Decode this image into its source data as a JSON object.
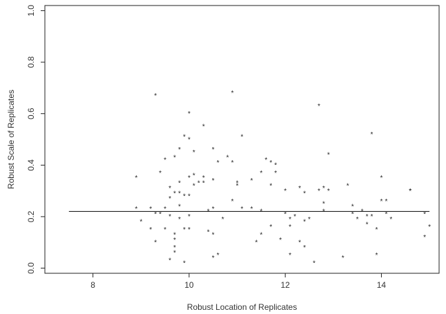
{
  "chart_data": {
    "type": "scatter",
    "xlabel": "Robust Location of Replicates",
    "ylabel": "Robust Scale of Replicates",
    "xlim": [
      7.0,
      15.2
    ],
    "ylim": [
      -0.02,
      1.02
    ],
    "x_ticks": [
      8,
      10,
      12,
      14
    ],
    "y_ticks": [
      0.0,
      0.2,
      0.4,
      0.6,
      0.8,
      1.0
    ],
    "x_tick_labels": [
      "8",
      "10",
      "12",
      "14"
    ],
    "y_tick_labels": [
      "0.0",
      "0.2",
      "0.4",
      "0.6",
      "0.8",
      "1.0"
    ],
    "marker": "*",
    "grid": false,
    "reference_line": {
      "y": 0.22,
      "x_start": 7.5,
      "x_end": 15.0
    },
    "points": [
      {
        "x": 8.9,
        "y": 0.36
      },
      {
        "x": 8.9,
        "y": 0.24
      },
      {
        "x": 9.0,
        "y": 0.19
      },
      {
        "x": 9.2,
        "y": 0.16
      },
      {
        "x": 9.2,
        "y": 0.24
      },
      {
        "x": 9.3,
        "y": 0.68
      },
      {
        "x": 9.3,
        "y": 0.22
      },
      {
        "x": 9.3,
        "y": 0.11
      },
      {
        "x": 9.4,
        "y": 0.38
      },
      {
        "x": 9.4,
        "y": 0.22
      },
      {
        "x": 9.5,
        "y": 0.43
      },
      {
        "x": 9.5,
        "y": 0.16
      },
      {
        "x": 9.5,
        "y": 0.24
      },
      {
        "x": 9.6,
        "y": 0.28
      },
      {
        "x": 9.6,
        "y": 0.21
      },
      {
        "x": 9.6,
        "y": 0.04
      },
      {
        "x": 9.6,
        "y": 0.32
      },
      {
        "x": 9.7,
        "y": 0.44
      },
      {
        "x": 9.7,
        "y": 0.3
      },
      {
        "x": 9.7,
        "y": 0.14
      },
      {
        "x": 9.7,
        "y": 0.09
      },
      {
        "x": 9.7,
        "y": 0.12
      },
      {
        "x": 9.7,
        "y": 0.07
      },
      {
        "x": 9.8,
        "y": 0.47
      },
      {
        "x": 9.8,
        "y": 0.34
      },
      {
        "x": 9.8,
        "y": 0.25
      },
      {
        "x": 9.8,
        "y": 0.2
      },
      {
        "x": 9.8,
        "y": 0.3
      },
      {
        "x": 9.9,
        "y": 0.52
      },
      {
        "x": 9.9,
        "y": 0.16
      },
      {
        "x": 9.9,
        "y": 0.03
      },
      {
        "x": 9.9,
        "y": 0.29
      },
      {
        "x": 10.0,
        "y": 0.61
      },
      {
        "x": 10.0,
        "y": 0.51
      },
      {
        "x": 10.0,
        "y": 0.36
      },
      {
        "x": 10.0,
        "y": 0.29
      },
      {
        "x": 10.0,
        "y": 0.16
      },
      {
        "x": 10.0,
        "y": 0.21
      },
      {
        "x": 10.1,
        "y": 0.46
      },
      {
        "x": 10.1,
        "y": 0.37
      },
      {
        "x": 10.1,
        "y": 0.33
      },
      {
        "x": 10.2,
        "y": 0.34
      },
      {
        "x": 10.3,
        "y": 0.56
      },
      {
        "x": 10.3,
        "y": 0.36
      },
      {
        "x": 10.3,
        "y": 0.34
      },
      {
        "x": 10.4,
        "y": 0.23
      },
      {
        "x": 10.4,
        "y": 0.15
      },
      {
        "x": 10.5,
        "y": 0.47
      },
      {
        "x": 10.5,
        "y": 0.35
      },
      {
        "x": 10.5,
        "y": 0.24
      },
      {
        "x": 10.5,
        "y": 0.14
      },
      {
        "x": 10.5,
        "y": 0.05
      },
      {
        "x": 10.6,
        "y": 0.42
      },
      {
        "x": 10.6,
        "y": 0.06
      },
      {
        "x": 10.7,
        "y": 0.2
      },
      {
        "x": 10.8,
        "y": 0.44
      },
      {
        "x": 10.9,
        "y": 0.69
      },
      {
        "x": 10.9,
        "y": 0.42
      },
      {
        "x": 10.9,
        "y": 0.27
      },
      {
        "x": 11.0,
        "y": 0.34
      },
      {
        "x": 11.0,
        "y": 0.33
      },
      {
        "x": 11.1,
        "y": 0.52
      },
      {
        "x": 11.1,
        "y": 0.24
      },
      {
        "x": 11.3,
        "y": 0.35
      },
      {
        "x": 11.3,
        "y": 0.24
      },
      {
        "x": 11.4,
        "y": 0.11
      },
      {
        "x": 11.5,
        "y": 0.38
      },
      {
        "x": 11.5,
        "y": 0.23
      },
      {
        "x": 11.5,
        "y": 0.14
      },
      {
        "x": 11.6,
        "y": 0.43
      },
      {
        "x": 11.7,
        "y": 0.42
      },
      {
        "x": 11.7,
        "y": 0.33
      },
      {
        "x": 11.7,
        "y": 0.17
      },
      {
        "x": 11.8,
        "y": 0.38
      },
      {
        "x": 11.8,
        "y": 0.41
      },
      {
        "x": 11.9,
        "y": 0.12
      },
      {
        "x": 12.0,
        "y": 0.22
      },
      {
        "x": 12.0,
        "y": 0.31
      },
      {
        "x": 12.1,
        "y": 0.17
      },
      {
        "x": 12.1,
        "y": 0.2
      },
      {
        "x": 12.1,
        "y": 0.06
      },
      {
        "x": 12.2,
        "y": 0.21
      },
      {
        "x": 12.3,
        "y": 0.32
      },
      {
        "x": 12.3,
        "y": 0.11
      },
      {
        "x": 12.4,
        "y": 0.3
      },
      {
        "x": 12.4,
        "y": 0.19
      },
      {
        "x": 12.4,
        "y": 0.09
      },
      {
        "x": 12.5,
        "y": 0.2
      },
      {
        "x": 12.6,
        "y": 0.03
      },
      {
        "x": 12.7,
        "y": 0.31
      },
      {
        "x": 12.7,
        "y": 0.64
      },
      {
        "x": 12.8,
        "y": 0.32
      },
      {
        "x": 12.8,
        "y": 0.26
      },
      {
        "x": 12.8,
        "y": 0.23
      },
      {
        "x": 12.9,
        "y": 0.45
      },
      {
        "x": 12.9,
        "y": 0.31
      },
      {
        "x": 13.2,
        "y": 0.05
      },
      {
        "x": 13.3,
        "y": 0.33
      },
      {
        "x": 13.4,
        "y": 0.25
      },
      {
        "x": 13.4,
        "y": 0.22
      },
      {
        "x": 13.5,
        "y": 0.2
      },
      {
        "x": 13.6,
        "y": 0.23
      },
      {
        "x": 13.7,
        "y": 0.21
      },
      {
        "x": 13.7,
        "y": 0.18
      },
      {
        "x": 13.8,
        "y": 0.53
      },
      {
        "x": 13.8,
        "y": 0.21
      },
      {
        "x": 13.9,
        "y": 0.16
      },
      {
        "x": 13.9,
        "y": 0.06
      },
      {
        "x": 14.0,
        "y": 0.36
      },
      {
        "x": 14.0,
        "y": 0.27
      },
      {
        "x": 14.1,
        "y": 0.22
      },
      {
        "x": 14.1,
        "y": 0.27
      },
      {
        "x": 14.2,
        "y": 0.2
      },
      {
        "x": 14.6,
        "y": 0.31
      },
      {
        "x": 14.6,
        "y": 0.31
      },
      {
        "x": 14.9,
        "y": 0.22
      },
      {
        "x": 14.9,
        "y": 0.13
      },
      {
        "x": 15.0,
        "y": 0.17
      }
    ]
  }
}
